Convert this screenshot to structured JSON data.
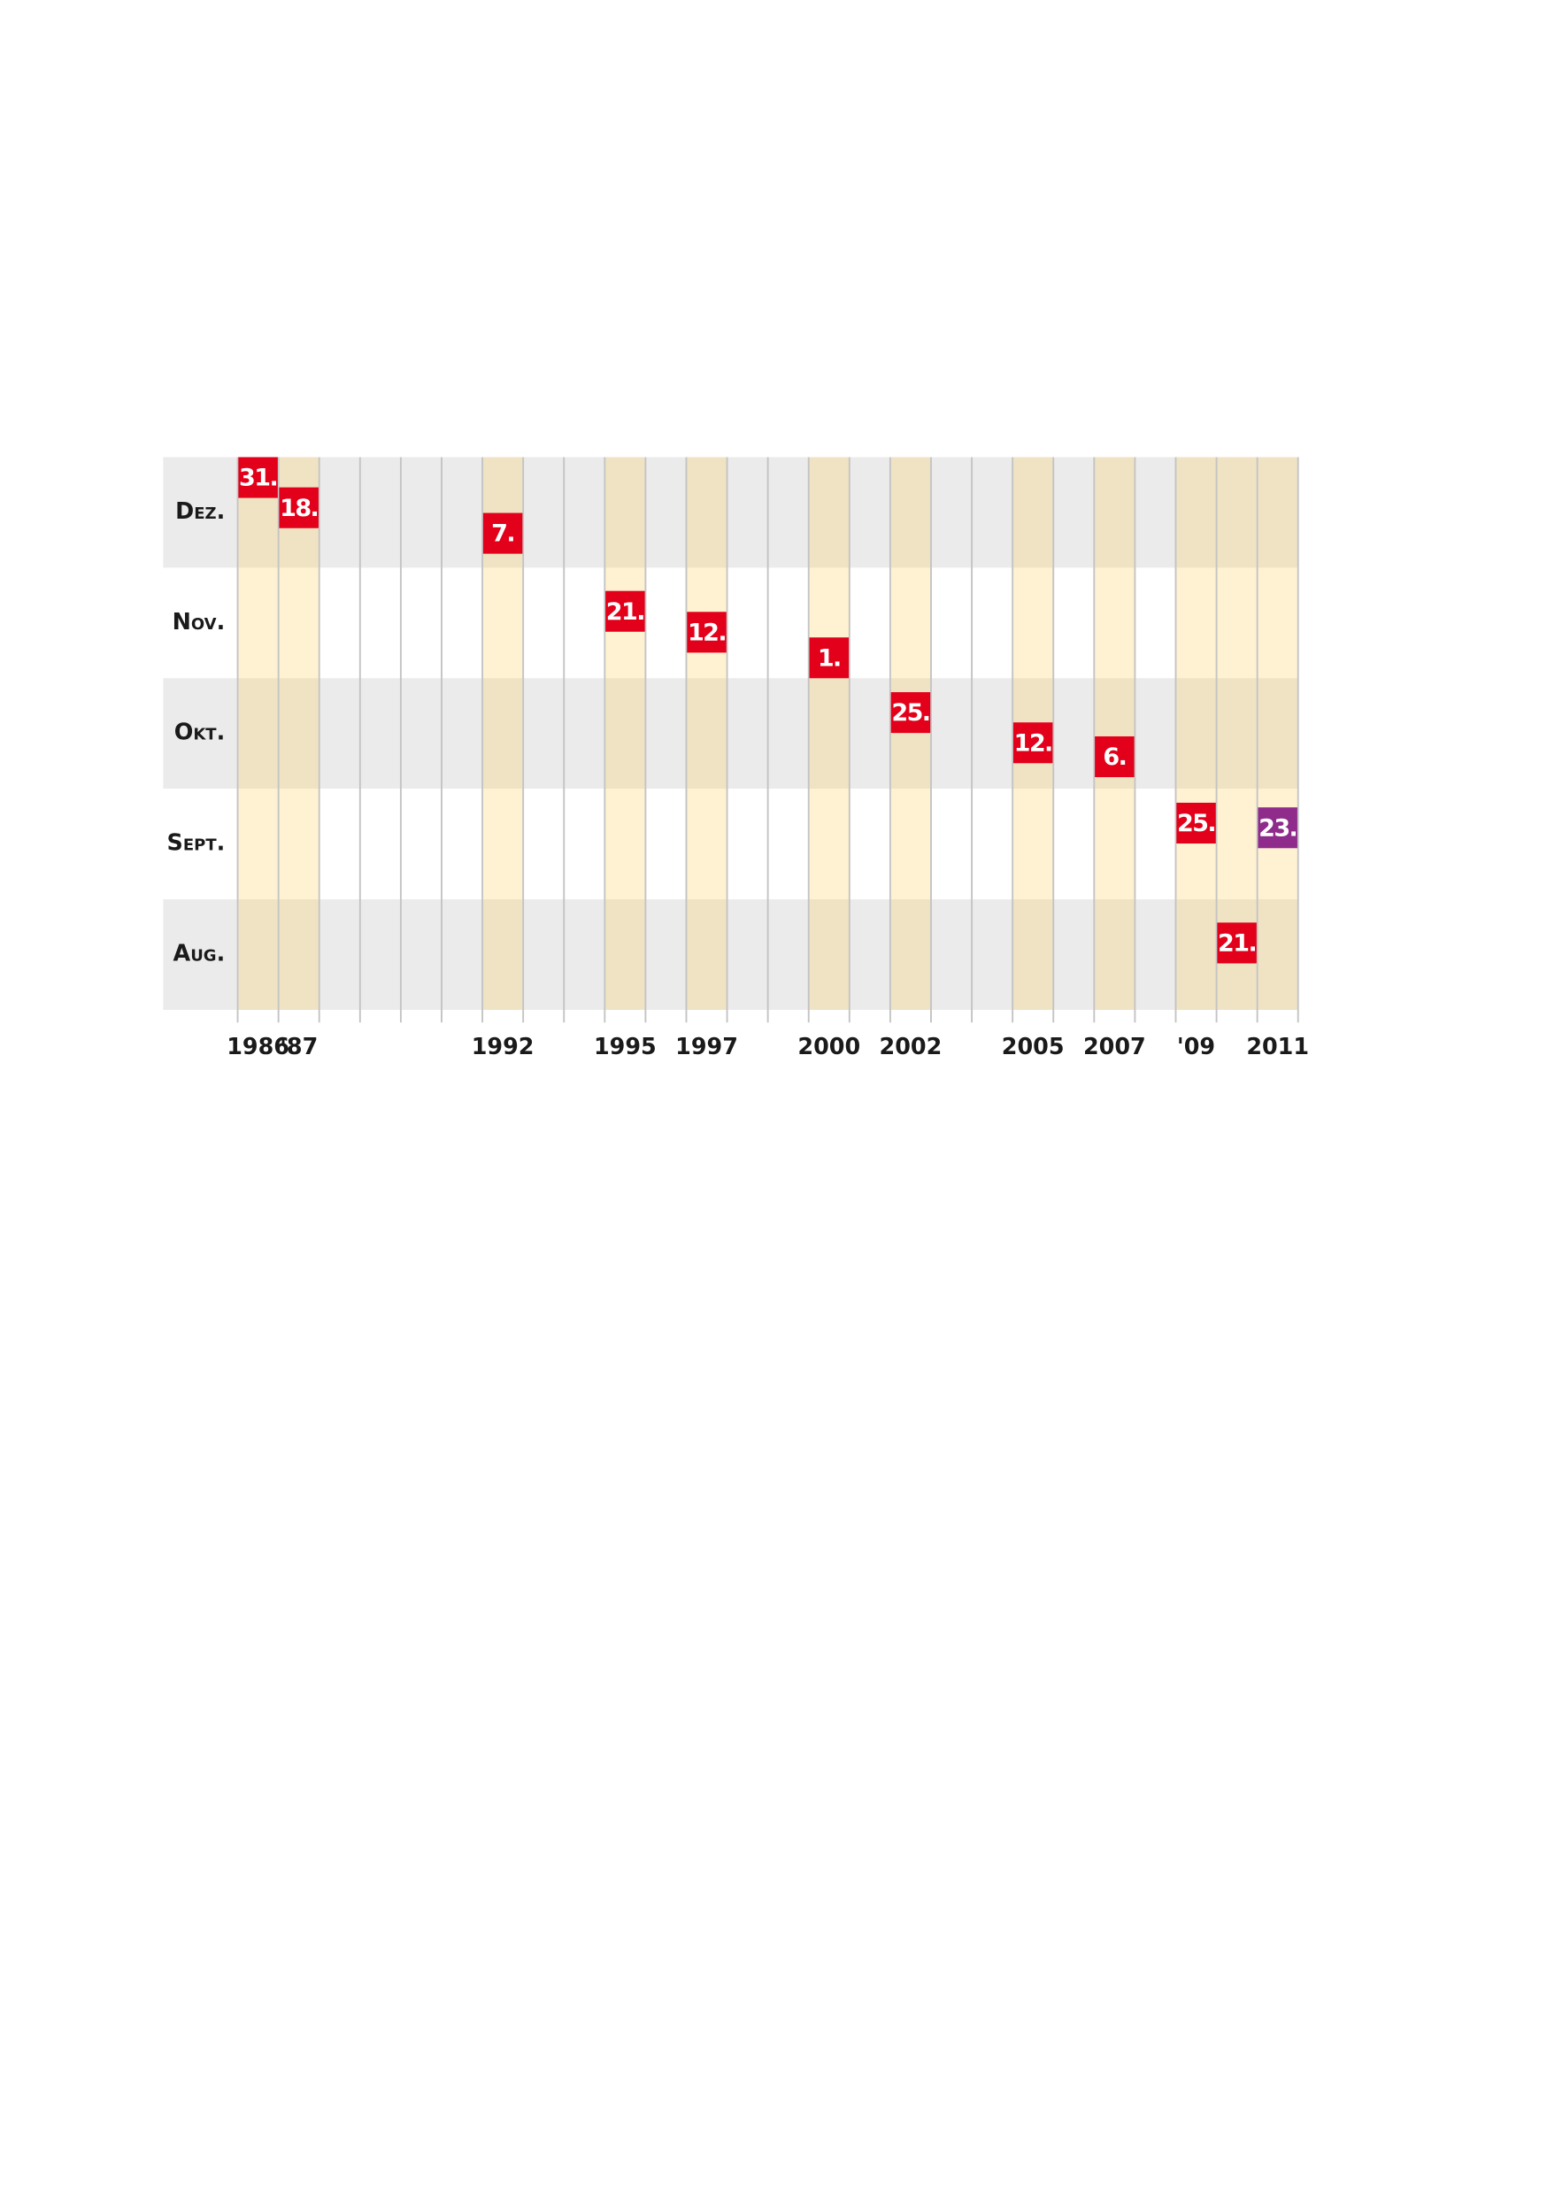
{
  "chart_data": {
    "type": "timeline",
    "xlim": [
      1986,
      2011
    ],
    "xticks": [
      1986,
      {
        "value": 1987,
        "label": "'87"
      },
      1992,
      1995,
      1997,
      2000,
      2002,
      2005,
      2007,
      {
        "value": 2009,
        "label": "'09"
      },
      2011
    ],
    "ylim": [
      1,
      31
    ],
    "series": [
      {
        "name": "Dez.",
        "x": [
          1986,
          1987,
          1992
        ],
        "values": [
          31,
          18,
          7
        ],
        "value_labels": [
          "31.",
          "18.",
          "7."
        ],
        "colors": [
          "#e2001a",
          "#e2001a",
          "#e2001a"
        ]
      },
      {
        "name": "Nov.",
        "x": [
          1995,
          1997,
          2000
        ],
        "values": [
          21,
          12,
          1
        ],
        "value_labels": [
          "21.",
          "12.",
          "1."
        ],
        "colors": [
          "#e2001a",
          "#e2001a",
          "#e2001a"
        ]
      },
      {
        "name": "Okt.",
        "x": [
          2002,
          2005,
          2007
        ],
        "values": [
          25,
          12,
          6
        ],
        "value_labels": [
          "25.",
          "12.",
          "6."
        ],
        "colors": [
          "#e2001a",
          "#e2001a",
          "#e2001a"
        ]
      },
      {
        "name": "Sept.",
        "x": [
          2009,
          2011
        ],
        "values": [
          25,
          23
        ],
        "value_labels": [
          "25.",
          "23."
        ],
        "colors": [
          "#e2001a",
          "#8e2b8b"
        ]
      },
      {
        "name": "Aug.",
        "x": [
          2010
        ],
        "values": [
          21
        ],
        "value_labels": [
          "21."
        ],
        "colors": [
          "#e2001a"
        ]
      }
    ]
  }
}
